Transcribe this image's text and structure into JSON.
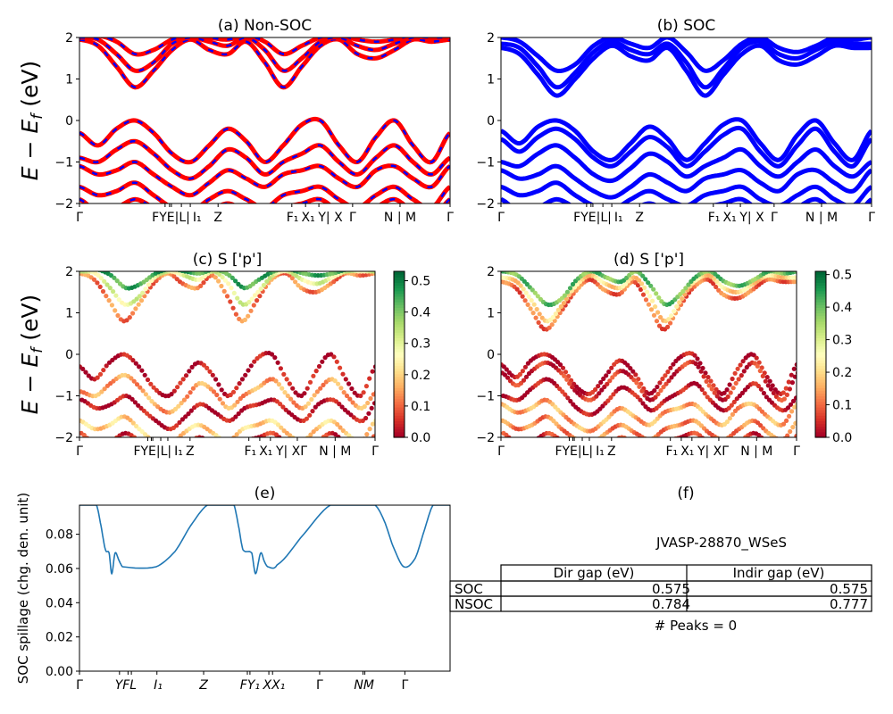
{
  "chart_data": [
    {
      "id": "a",
      "type": "line",
      "title": "(a) Non-SOC",
      "ylabel": {
        "main": "E − E",
        "sub": "f",
        "unit": " (eV)"
      },
      "ylim": [
        -2,
        2
      ],
      "yticks": [
        "−2",
        "−1",
        "0",
        "1",
        "2"
      ],
      "xticks": [
        0,
        0.231,
        0.243,
        0.248,
        0.275,
        0.299,
        0.374,
        0.573,
        0.61,
        0.646,
        0.737,
        0.865,
        1
      ],
      "xlabels": [
        {
          "k": 0,
          "label": "Γ"
        },
        {
          "k": 0.247,
          "label": "FYE|L|"
        },
        {
          "k": 0.302,
          "label": "I₁"
        },
        {
          "k": 0.374,
          "label": "Z"
        },
        {
          "k": 0.575,
          "label": "F₁"
        },
        {
          "k": 0.612,
          "label": "X₁"
        },
        {
          "k": 0.652,
          "label": "Y| X"
        },
        {
          "k": 0.737,
          "label": "Γ"
        },
        {
          "k": 0.865,
          "label": "N | M"
        },
        {
          "k": 1,
          "label": "Γ"
        }
      ],
      "style": "red-blue-dashed",
      "colors": {
        "line": "#ff0000",
        "dash": "#0000ff"
      }
    },
    {
      "id": "b",
      "type": "line",
      "title": "(b) SOC",
      "ylim": [
        -2,
        2
      ],
      "yticks": [
        "−2",
        "−1",
        "0",
        "1",
        "2"
      ],
      "xticks": [
        0,
        0.231,
        0.243,
        0.248,
        0.275,
        0.299,
        0.374,
        0.573,
        0.61,
        0.646,
        0.737,
        0.865,
        1
      ],
      "xlabels": [
        {
          "k": 0,
          "label": "Γ"
        },
        {
          "k": 0.247,
          "label": "FYE|L|"
        },
        {
          "k": 0.302,
          "label": "I₁"
        },
        {
          "k": 0.374,
          "label": "Z"
        },
        {
          "k": 0.575,
          "label": "F₁"
        },
        {
          "k": 0.612,
          "label": "X₁"
        },
        {
          "k": 0.652,
          "label": "Y| X"
        },
        {
          "k": 0.737,
          "label": "Γ"
        },
        {
          "k": 0.865,
          "label": "N | M"
        },
        {
          "k": 1,
          "label": "Γ"
        }
      ],
      "style": "blue",
      "colors": {
        "line": "#0000ff"
      }
    },
    {
      "id": "c",
      "type": "scatter",
      "title": "(c)  S ['p']",
      "ylabel": {
        "main": "E − E",
        "sub": "f",
        "unit": " (eV)"
      },
      "ylim": [
        -2,
        2
      ],
      "yticks": [
        "−2",
        "−1",
        "0",
        "1",
        "2"
      ],
      "xticks": [
        0,
        0.231,
        0.243,
        0.248,
        0.275,
        0.299,
        0.374,
        0.573,
        0.61,
        0.646,
        0.737,
        0.865,
        1
      ],
      "xlabels": [
        {
          "k": 0,
          "label": "Γ"
        },
        {
          "k": 0.247,
          "label": "FYE|L|"
        },
        {
          "k": 0.305,
          "label": "I₁"
        },
        {
          "k": 0.374,
          "label": "Z"
        },
        {
          "k": 0.578,
          "label": "F₁"
        },
        {
          "k": 0.612,
          "label": "X₁"
        },
        {
          "k": 0.68,
          "label": "Y| XΓ"
        },
        {
          "k": 0.865,
          "label": "N | M"
        },
        {
          "k": 1,
          "label": "Γ"
        }
      ],
      "colorbar": {
        "min": 0,
        "max": 0.53,
        "ticks": [
          "0.0",
          "0.1",
          "0.2",
          "0.3",
          "0.4",
          "0.5"
        ],
        "cmap": "RdYlGn"
      }
    },
    {
      "id": "d",
      "type": "scatter",
      "title": "(d) S ['p']",
      "ylim": [
        -2,
        2
      ],
      "yticks": [
        "−2",
        "−1",
        "0",
        "1",
        "2"
      ],
      "xticks": [
        0,
        0.231,
        0.243,
        0.248,
        0.275,
        0.299,
        0.374,
        0.573,
        0.61,
        0.646,
        0.737,
        0.865,
        1
      ],
      "xlabels": [
        {
          "k": 0,
          "label": "Γ"
        },
        {
          "k": 0.247,
          "label": "FYE|L|"
        },
        {
          "k": 0.305,
          "label": "I₁"
        },
        {
          "k": 0.374,
          "label": "Z"
        },
        {
          "k": 0.578,
          "label": "F₁"
        },
        {
          "k": 0.612,
          "label": "X₁"
        },
        {
          "k": 0.68,
          "label": "Y| XΓ"
        },
        {
          "k": 0.865,
          "label": "N | M"
        },
        {
          "k": 1,
          "label": "Γ"
        }
      ],
      "colorbar": {
        "min": 0,
        "max": 0.51,
        "ticks": [
          "0.0",
          "0.1",
          "0.2",
          "0.3",
          "0.4",
          "0.5"
        ],
        "cmap": "RdYlGn"
      }
    },
    {
      "id": "e",
      "type": "line",
      "title": "(e)",
      "ylabel": "SOC spillage (chg. den. unit)",
      "ylim": [
        0,
        0.097
      ],
      "yticks": [
        0,
        0.02,
        0.04,
        0.06,
        0.08
      ],
      "ytick_labels": [
        "0.00",
        "0.02",
        "0.04",
        "0.06",
        "0.08"
      ],
      "xticks": [
        0,
        0.108,
        0.131,
        0.14,
        0.209,
        0.335,
        0.453,
        0.46,
        0.511,
        0.521,
        0.648,
        0.765,
        0.77,
        0.878
      ],
      "xlabels": [
        {
          "k": 0,
          "label": "Γ"
        },
        {
          "k": 0.125,
          "label": "YFL"
        },
        {
          "k": 0.212,
          "label": "I₁"
        },
        {
          "k": 0.335,
          "label": "Z"
        },
        {
          "k": 0.46,
          "label": "FY₁"
        },
        {
          "k": 0.52,
          "label": "XX₁"
        },
        {
          "k": 0.648,
          "label": "Γ"
        },
        {
          "k": 0.768,
          "label": "NM"
        },
        {
          "k": 0.878,
          "label": "Γ"
        }
      ],
      "color": "#1f77b4",
      "x": [
        0,
        0.046,
        0.058,
        0.07,
        0.08,
        0.087,
        0.096,
        0.106,
        0.116,
        0.207,
        0.258,
        0.3,
        0.345,
        0.417,
        0.429,
        0.441,
        0.465,
        0.475,
        0.489,
        0.499,
        0.508,
        0.533,
        0.605,
        0.677,
        0.798,
        0.822,
        0.846,
        0.875,
        0.906,
        0.93,
        0.954,
        1
      ],
      "y": [
        0.097,
        0.097,
        0.085,
        0.071,
        0.069,
        0.057,
        0.069,
        0.065,
        0.061,
        0.061,
        0.07,
        0.085,
        0.097,
        0.097,
        0.085,
        0.071,
        0.069,
        0.057,
        0.069,
        0.064,
        0.061,
        0.062,
        0.08,
        0.097,
        0.097,
        0.088,
        0.073,
        0.061,
        0.066,
        0.082,
        0.097,
        0.097
      ]
    }
  ],
  "bands": {
    "k_samples": 21,
    "nsoc": [
      [
        1.95,
        1.8,
        1.3,
        0.8,
        1.2,
        1.7,
        1.95,
        1.7,
        1.6,
        1.9,
        1.4,
        0.8,
        1.3,
        1.8,
        1.95,
        1.6,
        1.5,
        1.7,
        1.95,
        1.9,
        1.95
      ],
      [
        2.0,
        1.95,
        1.6,
        1.2,
        1.4,
        1.85,
        2.0,
        1.9,
        1.8,
        2.0,
        1.7,
        1.2,
        1.5,
        1.9,
        2.0,
        1.8,
        1.7,
        1.85,
        2.0,
        2.0,
        2.0
      ],
      [
        2.05,
        2.05,
        1.9,
        1.6,
        1.7,
        1.95,
        2.05,
        2.0,
        1.95,
        2.05,
        1.9,
        1.6,
        1.8,
        2.0,
        2.05,
        1.95,
        1.9,
        1.95,
        2.05,
        2.05,
        2.05
      ],
      [
        -0.3,
        -0.6,
        -0.2,
        0.0,
        -0.3,
        -0.8,
        -1.0,
        -0.6,
        -0.2,
        -0.5,
        -1.0,
        -0.6,
        -0.1,
        0.0,
        -0.6,
        -1.0,
        -0.4,
        0.0,
        -0.6,
        -1.0,
        -0.3
      ],
      [
        -0.9,
        -1.0,
        -0.7,
        -0.5,
        -0.8,
        -1.2,
        -1.4,
        -1.1,
        -0.7,
        -0.9,
        -1.3,
        -1.0,
        -0.8,
        -0.6,
        -1.0,
        -1.3,
        -0.9,
        -0.6,
        -1.0,
        -1.3,
        -0.9
      ],
      [
        -1.1,
        -1.3,
        -1.2,
        -1.0,
        -1.3,
        -1.6,
        -1.8,
        -1.5,
        -1.2,
        -1.4,
        -1.6,
        -1.3,
        -1.2,
        -1.1,
        -1.4,
        -1.6,
        -1.2,
        -1.1,
        -1.4,
        -1.6,
        -1.1
      ],
      [
        -1.6,
        -1.8,
        -1.7,
        -1.5,
        -1.8,
        -2.1,
        -2.2,
        -1.9,
        -1.7,
        -1.9,
        -2.1,
        -1.8,
        -1.7,
        -1.6,
        -1.9,
        -2.1,
        -1.8,
        -1.6,
        -1.9,
        -2.1,
        -1.6
      ],
      [
        -1.9,
        -2.2,
        -2.1,
        -1.9,
        -2.1,
        -2.3,
        -2.4,
        -2.2,
        -2.0,
        -2.2,
        -2.3,
        -2.1,
        -2.0,
        -1.9,
        -2.2,
        -2.4,
        -2.1,
        -1.9,
        -2.2,
        -2.4,
        -1.9
      ]
    ],
    "soc": [
      [
        1.75,
        1.6,
        1.1,
        0.6,
        1.0,
        1.5,
        1.8,
        1.55,
        1.45,
        1.75,
        1.2,
        0.6,
        1.1,
        1.6,
        1.8,
        1.45,
        1.35,
        1.55,
        1.8,
        1.75,
        1.75
      ],
      [
        1.85,
        1.75,
        1.3,
        0.8,
        1.15,
        1.65,
        1.9,
        1.7,
        1.6,
        1.85,
        1.4,
        0.8,
        1.25,
        1.75,
        1.9,
        1.6,
        1.5,
        1.7,
        1.9,
        1.85,
        1.85
      ],
      [
        2.0,
        1.9,
        1.55,
        1.2,
        1.35,
        1.8,
        2.0,
        1.85,
        1.75,
        2.0,
        1.65,
        1.2,
        1.45,
        1.85,
        2.0,
        1.75,
        1.65,
        1.8,
        2.0,
        1.95,
        2.0
      ],
      [
        -0.25,
        -0.55,
        -0.15,
        0.0,
        -0.25,
        -0.75,
        -0.95,
        -0.55,
        -0.15,
        -0.45,
        -0.95,
        -0.55,
        -0.1,
        0.0,
        -0.55,
        -0.95,
        -0.35,
        0.0,
        -0.55,
        -0.95,
        -0.25
      ],
      [
        -0.45,
        -0.75,
        -0.4,
        -0.2,
        -0.45,
        -0.9,
        -1.1,
        -0.75,
        -0.4,
        -0.65,
        -1.1,
        -0.75,
        -0.35,
        -0.2,
        -0.75,
        -1.1,
        -0.6,
        -0.2,
        -0.75,
        -1.1,
        -0.45
      ],
      [
        -1.0,
        -1.1,
        -0.8,
        -0.6,
        -0.9,
        -1.3,
        -1.45,
        -1.15,
        -0.8,
        -1.0,
        -1.35,
        -1.1,
        -0.9,
        -0.7,
        -1.1,
        -1.35,
        -1.0,
        -0.7,
        -1.1,
        -1.35,
        -1.0
      ],
      [
        -1.2,
        -1.4,
        -1.3,
        -1.1,
        -1.4,
        -1.7,
        -1.85,
        -1.6,
        -1.3,
        -1.5,
        -1.7,
        -1.4,
        -1.3,
        -1.2,
        -1.5,
        -1.7,
        -1.3,
        -1.2,
        -1.5,
        -1.7,
        -1.2
      ],
      [
        -1.6,
        -1.8,
        -1.7,
        -1.5,
        -1.8,
        -2.05,
        -2.15,
        -1.9,
        -1.7,
        -1.9,
        -2.05,
        -1.8,
        -1.7,
        -1.6,
        -1.9,
        -2.05,
        -1.8,
        -1.6,
        -1.9,
        -2.05,
        -1.6
      ],
      [
        -1.9,
        -2.2,
        -2.1,
        -1.9,
        -2.1,
        -2.3,
        -2.4,
        -2.2,
        -2.0,
        -2.2,
        -2.3,
        -2.1,
        -2.0,
        -1.9,
        -2.2,
        -2.4,
        -2.1,
        -1.9,
        -2.2,
        -2.4,
        -1.9
      ]
    ],
    "p_weight_nsoc": [
      0.12,
      0.3,
      0.45,
      0.02,
      0.15,
      0.02,
      0.2,
      0.05
    ],
    "p_weight_soc": [
      0.1,
      0.2,
      0.4,
      0.02,
      0.05,
      0.02,
      0.15,
      0.12,
      0.05
    ]
  },
  "panel_f": {
    "title": "(f)",
    "material": "JVASP-28870_WSeS",
    "table": {
      "headers": [
        "",
        "Dir gap (eV)",
        "Indir gap (eV)"
      ],
      "rows": [
        [
          "SOC",
          "0.575",
          "0.575"
        ],
        [
          "NSOC",
          "0.784",
          "0.777"
        ]
      ]
    },
    "peaks": "# Peaks = 0"
  }
}
